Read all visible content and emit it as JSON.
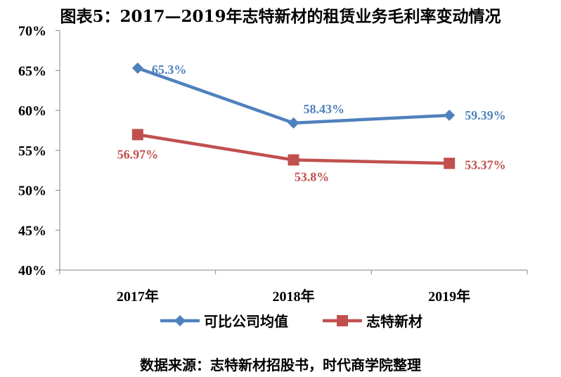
{
  "chart_data": {
    "type": "line",
    "title": "图表5：2017—2019年志特新材的租赁业务毛利率变动情况",
    "categories": [
      "2017年",
      "2018年",
      "2019年"
    ],
    "ylim": [
      40,
      70
    ],
    "yticks": [
      "40%",
      "45%",
      "50%",
      "55%",
      "60%",
      "65%",
      "70%"
    ],
    "grid": false,
    "legend_position": "bottom",
    "series": [
      {
        "name": "可比公司均值",
        "values": [
          65.3,
          58.43,
          59.39
        ],
        "labels": [
          "65.3%",
          "58.43%",
          "59.39%"
        ],
        "color": "#4F81BD",
        "marker": "diamond"
      },
      {
        "name": "志特新材",
        "values": [
          56.97,
          53.8,
          53.37
        ],
        "labels": [
          "56.97%",
          "53.8%",
          "53.37%"
        ],
        "color": "#C0504D",
        "marker": "square"
      }
    ],
    "source": "数据来源：志特新材招股书，时代商学院整理"
  }
}
